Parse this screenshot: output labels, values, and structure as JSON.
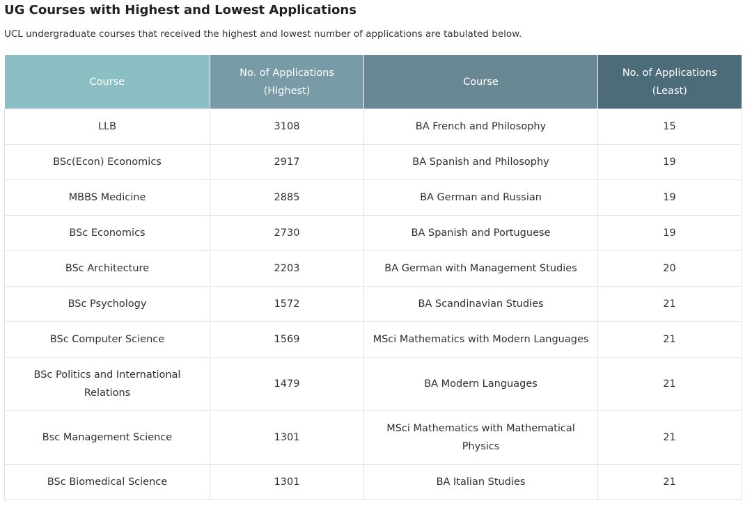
{
  "header": {
    "title": "UG Courses with Highest and Lowest Applications",
    "subtitle": "UCL undergraduate courses that received the highest and lowest number of applications are tabulated below."
  },
  "table": {
    "columns": [
      "Course",
      "No. of Applications (Highest)",
      "Course",
      "No. of Applications (Least)"
    ],
    "rows": [
      [
        "LLB",
        "3108",
        "BA French and Philosophy",
        "15"
      ],
      [
        "BSc(Econ) Economics",
        "2917",
        "BA Spanish and Philosophy",
        "19"
      ],
      [
        "MBBS Medicine",
        "2885",
        "BA German and Russian",
        "19"
      ],
      [
        "BSc Economics",
        "2730",
        "BA Spanish and Portuguese",
        "19"
      ],
      [
        "BSc Architecture",
        "2203",
        "BA German with Management Studies",
        "20"
      ],
      [
        "BSc Psychology",
        "1572",
        "BA Scandinavian Studies",
        "21"
      ],
      [
        "BSc Computer Science",
        "1569",
        "MSci Mathematics with Modern Languages",
        "21"
      ],
      [
        "BSc Politics and International Relations",
        "1479",
        "BA Modern Languages",
        "21"
      ],
      [
        "Bsc Management Science",
        "1301",
        "MSci Mathematics with Mathematical Physics",
        "21"
      ],
      [
        "BSc Biomedical Science",
        "1301",
        "BA Italian Studies",
        "21"
      ]
    ]
  }
}
